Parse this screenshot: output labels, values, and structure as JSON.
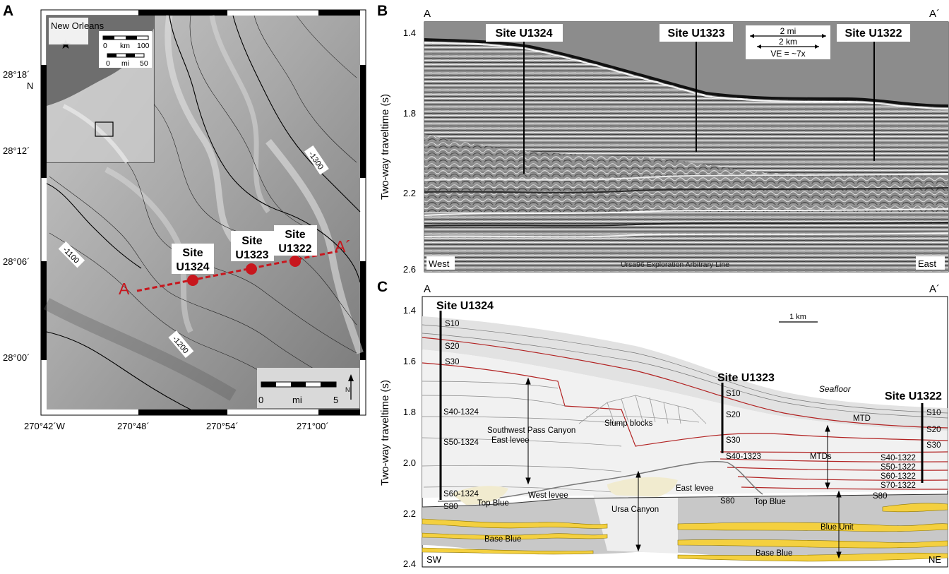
{
  "panel_a": {
    "letter": "A",
    "inset": {
      "city": "New Orleans",
      "scale_km_labels": [
        "0",
        "km",
        "100"
      ],
      "scale_mi_labels": [
        "0",
        "mi",
        "50"
      ]
    },
    "lat_labels": [
      "28°18´",
      "N",
      "28°12´",
      "28°06´",
      "28°00´"
    ],
    "lon_labels": [
      "270°42´W",
      "270°48´",
      "270°54´",
      "271°00´"
    ],
    "contours": [
      "-1300",
      "-1100",
      "-1200"
    ],
    "sites": [
      {
        "line1": "Site",
        "line2": "U1324"
      },
      {
        "line1": "Site",
        "line2": "U1323"
      },
      {
        "line1": "Site",
        "line2": "U1322"
      }
    ],
    "transect_start": "A",
    "transect_end": "A´",
    "scale_labels": [
      "0",
      "mi",
      "5"
    ],
    "north_label": "N"
  },
  "panel_b": {
    "letter": "B",
    "left_end": "A",
    "right_end": "A´",
    "sites": [
      "Site U1324",
      "Site U1323",
      "Site U1322"
    ],
    "scale": {
      "mi": "2 mi",
      "km": "2 km",
      "ve": "VE = ~7x"
    },
    "ylabel": "Two-way traveltime (s)",
    "yticks": [
      "1.4",
      "1.8",
      "2.2",
      "2.6"
    ],
    "west": "West",
    "east": "East",
    "line_name": "Ursa96 Exploration Arbitrary Line"
  },
  "panel_c": {
    "letter": "C",
    "left_end": "A",
    "right_end": "A´",
    "ylabel": "Two-way traveltime (s)",
    "yticks": [
      "1.4",
      "1.6",
      "1.8",
      "2.0",
      "2.2",
      "2.4"
    ],
    "sites": [
      "Site U1324",
      "Site U1323",
      "Site U1322"
    ],
    "scale": "1 km",
    "u1324_labels": [
      "S10",
      "S20",
      "S30",
      "S40-1324",
      "S50-1324",
      "S60-1324",
      "S80"
    ],
    "u1323_labels": [
      "S10",
      "S20",
      "S30",
      "S40-1323",
      "S80"
    ],
    "u1322_labels": [
      "S10",
      "S20",
      "S30",
      "S40-1322",
      "S50-1322",
      "S60-1322",
      "S70-1322",
      "S80"
    ],
    "features": {
      "seafloor": "Seafloor",
      "mtd": "MTD",
      "slump": "Slump blocks",
      "swpc1": "Southwest Pass Canyon",
      "swpc2": "East levee",
      "mtds": "MTDs",
      "west_levee": "West levee",
      "east_levee": "East levee",
      "ursa": "Ursa Canyon",
      "top_blue_w": "Top Blue",
      "top_blue_e": "Top Blue",
      "blue_unit": "Blue Unit",
      "base_blue_w": "Base Blue",
      "base_blue_e": "Base Blue"
    },
    "sw": "SW",
    "ne": "NE"
  },
  "colors": {
    "accent_red": "#c8161d",
    "horizon_red": "#b22222",
    "blue_unit_yellow": "#f4d03f",
    "blue_unit_grey": "#c8c8c8"
  }
}
